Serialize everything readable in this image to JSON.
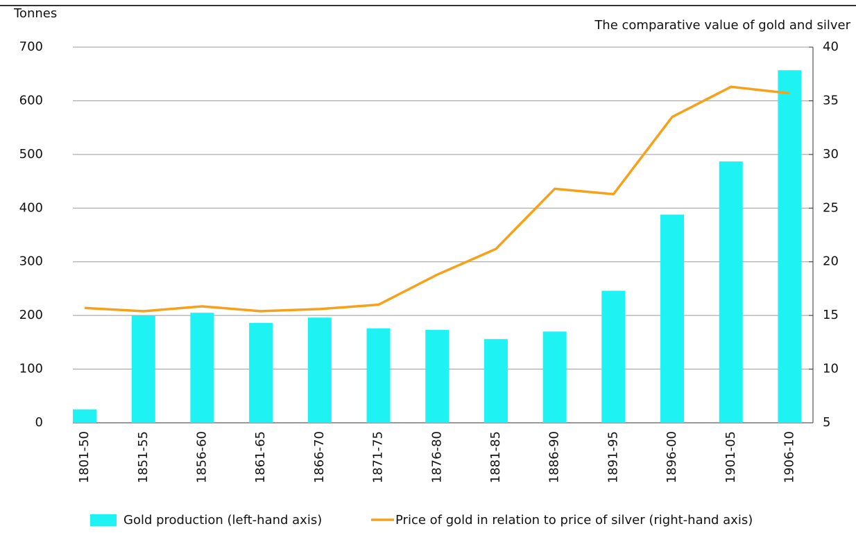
{
  "chart_data": {
    "type": "bar",
    "y_label": "Tonnes",
    "y2_label": "The comparative value of gold and silver",
    "categories": [
      "1801-50",
      "1851-55",
      "1856-60",
      "1861-65",
      "1866-70",
      "1871-75",
      "1876-80",
      "1881-85",
      "1886-90",
      "1891-95",
      "1896-00",
      "1901-05",
      "1906-10"
    ],
    "series": [
      {
        "name": "Gold production (left-hand axis)",
        "type": "bar",
        "axis": "y",
        "color": "#1ef2f2",
        "values": [
          25,
          200,
          205,
          186,
          196,
          176,
          173,
          156,
          170,
          246,
          388,
          487,
          657
        ]
      },
      {
        "name": "Price of gold in relation to price of silver (right-hand axis)",
        "type": "line",
        "axis": "y2",
        "color": "#f7a11a",
        "values": [
          15.7,
          15.4,
          15.85,
          15.4,
          15.6,
          16.0,
          18.8,
          21.2,
          26.8,
          26.3,
          33.5,
          36.3,
          35.7
        ]
      }
    ],
    "ylim": [
      0,
      700
    ],
    "yticks": [
      0,
      100,
      200,
      300,
      400,
      500,
      600,
      700
    ],
    "y2lim": [
      5,
      40
    ],
    "y2ticks": [
      5,
      10,
      15,
      20,
      25,
      30,
      35,
      40
    ],
    "grid": true,
    "legend": "bottom"
  }
}
